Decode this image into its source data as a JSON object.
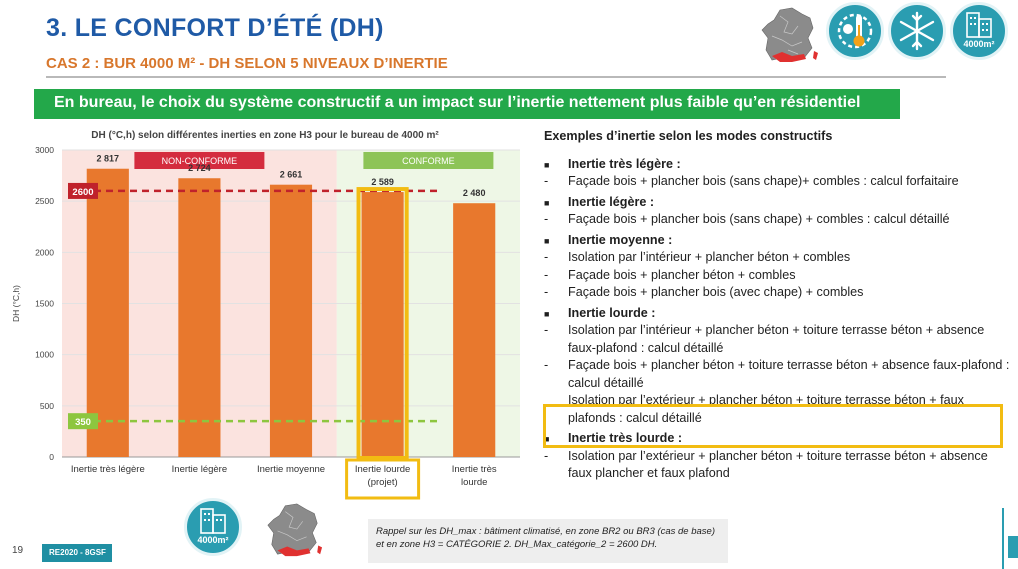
{
  "slide": {
    "title": "3. LE CONFORT D’ÉTÉ (DH)",
    "subtitle": "CAS 2 : BUR 4000 M² - DH SELON 5 NIVEAUX D’INERTIE",
    "banner": "En bureau, le choix du système constructif a un impact sur l’inertie nettement plus faible qu’en résidentiel"
  },
  "icons": {
    "top_badge_label": "4000m²",
    "bottom_badge_label": "4000m²",
    "colors": {
      "teal": "#2a9db1",
      "orange": "#e8782d",
      "red_zone": "#fbe3df",
      "green_zone": "#eef7e6"
    }
  },
  "chart_data": {
    "type": "bar",
    "title": "DH (°C,h) selon différentes inerties en zone H3 pour le bureau de 4000 m²",
    "ylabel": "DH (°C,h)",
    "xlabel": "",
    "ylim": [
      0,
      3000
    ],
    "yticks": [
      0,
      500,
      1000,
      1500,
      2000,
      2500,
      3000
    ],
    "categories": [
      "Inertie très légère",
      "Inertie légère",
      "Inertie moyenne",
      "Inertie lourde (projet)",
      "Inertie très lourde"
    ],
    "values": [
      2817,
      2724,
      2661,
      2589,
      2480
    ],
    "value_labels": [
      "2 817",
      "2 724",
      "2 661",
      "2 589",
      "2 480"
    ],
    "bar_colors": [
      "#e8782d",
      "#e8782d",
      "#e8782d",
      "#e8782d",
      "#e8782d"
    ],
    "highlighted_index": 3,
    "zones": [
      {
        "label": "NON-CONFORME",
        "from_index": 0,
        "to_index": 2,
        "color": "#fbe3df",
        "label_color": "#d42c3e"
      },
      {
        "label": "CONFORME",
        "from_index": 3,
        "to_index": 4,
        "color": "#eef7e6",
        "label_color": "#8dc457"
      }
    ],
    "reference_lines": [
      {
        "value": 2600,
        "label": "2600",
        "color": "#c0222b"
      },
      {
        "value": 350,
        "label": "350",
        "color": "#8dc63f"
      }
    ],
    "grid": true
  },
  "examples": {
    "title": "Exemples d’inertie selon les modes constructifs",
    "items": [
      {
        "kind": "bullet",
        "text": "Inertie très légère :"
      },
      {
        "kind": "dash",
        "text": "Façade bois + plancher bois (sans chape)+ combles : calcul forfaitaire"
      },
      {
        "kind": "bullet",
        "text": "Inertie légère :"
      },
      {
        "kind": "dash",
        "text": "Façade bois + plancher bois (sans chape) + combles : calcul détaillé"
      },
      {
        "kind": "bullet",
        "text": "Inertie moyenne :"
      },
      {
        "kind": "dash",
        "text": "Isolation par l’intérieur + plancher béton + combles"
      },
      {
        "kind": "dash",
        "text": "Façade bois + plancher béton + combles"
      },
      {
        "kind": "dash",
        "text": "Façade bois + plancher bois (avec chape) + combles"
      },
      {
        "kind": "bullet",
        "text": "Inertie lourde :"
      },
      {
        "kind": "dash",
        "text": "Isolation par l’intérieur + plancher béton + toiture terrasse béton + absence faux-plafond : calcul détaillé"
      },
      {
        "kind": "dash",
        "text": "Façade bois + plancher béton + toiture terrasse béton + absence faux-plafond : calcul détaillé"
      },
      {
        "kind": "plain",
        "text": "Isolation par l’extérieur + plancher béton + toiture terrasse béton + faux plafonds : calcul détaillé"
      },
      {
        "kind": "bullet",
        "text": "Inertie très lourde :"
      },
      {
        "kind": "dash",
        "text": "Isolation par l’extérieur + plancher béton + toiture terrasse béton + absence faux plancher et faux plafond"
      }
    ]
  },
  "footer": {
    "page_number": "19",
    "tag": "RE2020 - 8GSF",
    "note": "Rappel sur les DH_max : bâtiment climatisé, en zone BR2 ou BR3 (cas de base) et en zone H3 = CATÉGORIE 2. DH_Max_catégorie_2 = 2600 DH."
  }
}
